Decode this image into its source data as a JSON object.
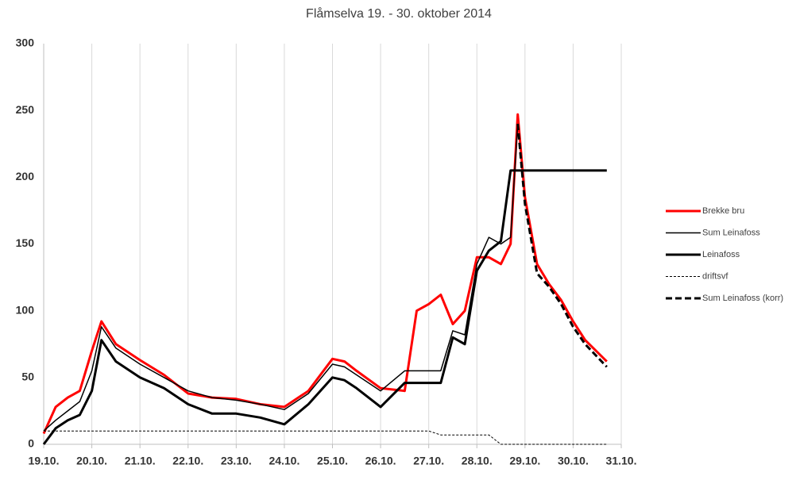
{
  "chart_data": {
    "type": "line",
    "title": "Flåmselva 19. - 30. oktober 2014",
    "x": [
      0,
      0.25,
      0.5,
      0.75,
      1,
      1.2,
      1.5,
      2,
      2.5,
      3,
      3.5,
      4,
      4.5,
      5,
      5.5,
      6,
      6.25,
      6.5,
      7,
      7.5,
      7.75,
      8,
      8.25,
      8.5,
      8.75,
      9,
      9.25,
      9.5,
      9.7,
      9.85,
      10,
      10.25,
      10.5,
      10.75,
      11,
      11.25,
      11.7
    ],
    "xlim": [
      0,
      12
    ],
    "xticks": [
      {
        "value": 0,
        "label": "19.10."
      },
      {
        "value": 1,
        "label": "20.10."
      },
      {
        "value": 2,
        "label": "21.10."
      },
      {
        "value": 3,
        "label": "22.10."
      },
      {
        "value": 4,
        "label": "23.10."
      },
      {
        "value": 5,
        "label": "24.10."
      },
      {
        "value": 6,
        "label": "25.10."
      },
      {
        "value": 7,
        "label": "26.10."
      },
      {
        "value": 8,
        "label": "27.10."
      },
      {
        "value": 9,
        "label": "28.10."
      },
      {
        "value": 10,
        "label": "29.10."
      },
      {
        "value": 11,
        "label": "30.10."
      },
      {
        "value": 12,
        "label": "31.10."
      }
    ],
    "ylim": [
      0,
      300
    ],
    "yticks": [
      0,
      50,
      100,
      150,
      200,
      250,
      300
    ],
    "grid": "x",
    "legend": "right",
    "series": [
      {
        "name": "Brekke bru",
        "color": "#ff0000",
        "line_width": 3,
        "dash": false,
        "values": [
          8,
          28,
          35,
          40,
          70,
          92,
          75,
          63,
          52,
          38,
          35,
          34,
          30,
          28,
          40,
          64,
          62,
          55,
          42,
          40,
          100,
          105,
          112,
          90,
          100,
          140,
          140,
          135,
          150,
          247,
          185,
          135,
          120,
          108,
          92,
          78,
          62
        ]
      },
      {
        "name": "Sum Leinafoss",
        "color": "#000000",
        "line_width": 1.5,
        "dash": false,
        "values": [
          10,
          18,
          25,
          32,
          55,
          88,
          72,
          60,
          50,
          40,
          35,
          33,
          30,
          26,
          38,
          60,
          58,
          52,
          40,
          55,
          55,
          55,
          55,
          85,
          82,
          135,
          155,
          150,
          155,
          240,
          null,
          null,
          null,
          null,
          null,
          null,
          null
        ]
      },
      {
        "name": "Leinafoss",
        "color": "#000000",
        "line_width": 3,
        "dash": false,
        "values": [
          0,
          12,
          18,
          22,
          40,
          78,
          62,
          50,
          42,
          30,
          23,
          23,
          20,
          15,
          30,
          50,
          48,
          42,
          28,
          46,
          46,
          46,
          46,
          80,
          75,
          130,
          145,
          152,
          205,
          205,
          205,
          205,
          205,
          205,
          205,
          205,
          205
        ]
      },
      {
        "name": "driftsvf",
        "color": "#000000",
        "line_width": 1,
        "dash": true,
        "values": [
          10,
          10,
          10,
          10,
          10,
          10,
          10,
          10,
          10,
          10,
          10,
          10,
          10,
          10,
          10,
          10,
          10,
          10,
          10,
          10,
          10,
          10,
          7,
          7,
          7,
          7,
          7,
          0,
          0,
          0,
          0,
          0,
          0,
          0,
          0,
          0,
          0
        ]
      },
      {
        "name": "Sum Leinafoss (korr)",
        "color": "#000000",
        "line_width": 3,
        "dash": true,
        "values": [
          null,
          null,
          null,
          null,
          null,
          null,
          null,
          null,
          null,
          null,
          null,
          null,
          null,
          null,
          null,
          null,
          null,
          null,
          null,
          null,
          null,
          null,
          null,
          null,
          null,
          null,
          null,
          null,
          null,
          240,
          180,
          128,
          118,
          105,
          88,
          75,
          58
        ]
      }
    ]
  }
}
